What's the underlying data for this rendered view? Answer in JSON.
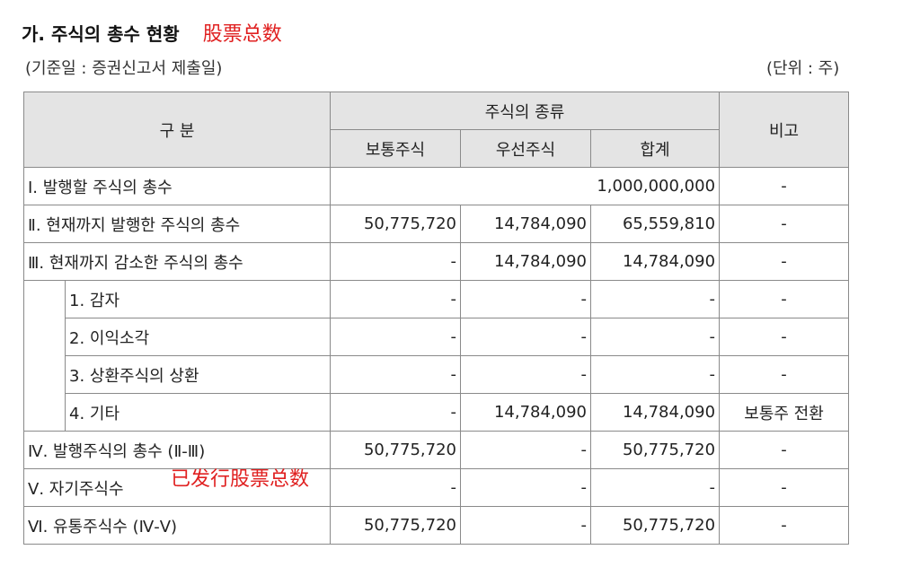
{
  "header": {
    "title": "가. 주식의 총수 현황",
    "note_cn": "股票总数",
    "basis": "(기준일 : 증권신고서 제출일)",
    "unit": "(단위 : 주)"
  },
  "table": {
    "col_category": "구  분",
    "col_stock_type": "주식의 종류",
    "col_common": "보통주식",
    "col_preferred": "우선주식",
    "col_total": "합계",
    "col_remark": "비고",
    "rows": [
      {
        "label": "Ⅰ. 발행할 주식의 총수",
        "merged_value": "1,000,000,000",
        "remark": "-"
      },
      {
        "label": "Ⅱ. 현재까지 발행한 주식의 총수",
        "common": "50,775,720",
        "preferred": "14,784,090",
        "total": "65,559,810",
        "remark": "-"
      },
      {
        "label": "Ⅲ. 현재까지 감소한 주식의 총수",
        "common": "-",
        "preferred": "14,784,090",
        "total": "14,784,090",
        "remark": "-"
      },
      {
        "label": "1. 감자",
        "common": "-",
        "preferred": "-",
        "total": "-",
        "remark": "-"
      },
      {
        "label": "2. 이익소각",
        "common": "-",
        "preferred": "-",
        "total": "-",
        "remark": "-"
      },
      {
        "label": "3. 상환주식의 상환",
        "common": "-",
        "preferred": "-",
        "total": "-",
        "remark": "-"
      },
      {
        "label": "4. 기타",
        "common": "-",
        "preferred": "14,784,090",
        "total": "14,784,090",
        "remark": "보통주 전환"
      },
      {
        "label": "Ⅳ. 발행주식의 총수 (Ⅱ-Ⅲ)",
        "common": "50,775,720",
        "preferred": "-",
        "total": "50,775,720",
        "remark": "-"
      },
      {
        "label": "Ⅴ. 자기주식수",
        "common": "-",
        "preferred": "-",
        "total": "-",
        "remark": "-"
      },
      {
        "label": "Ⅵ. 유통주식수 (Ⅳ-Ⅴ)",
        "common": "50,775,720",
        "preferred": "-",
        "total": "50,775,720",
        "remark": "-"
      }
    ]
  },
  "annotation": {
    "issued_note_cn": "已发行股票总数"
  }
}
